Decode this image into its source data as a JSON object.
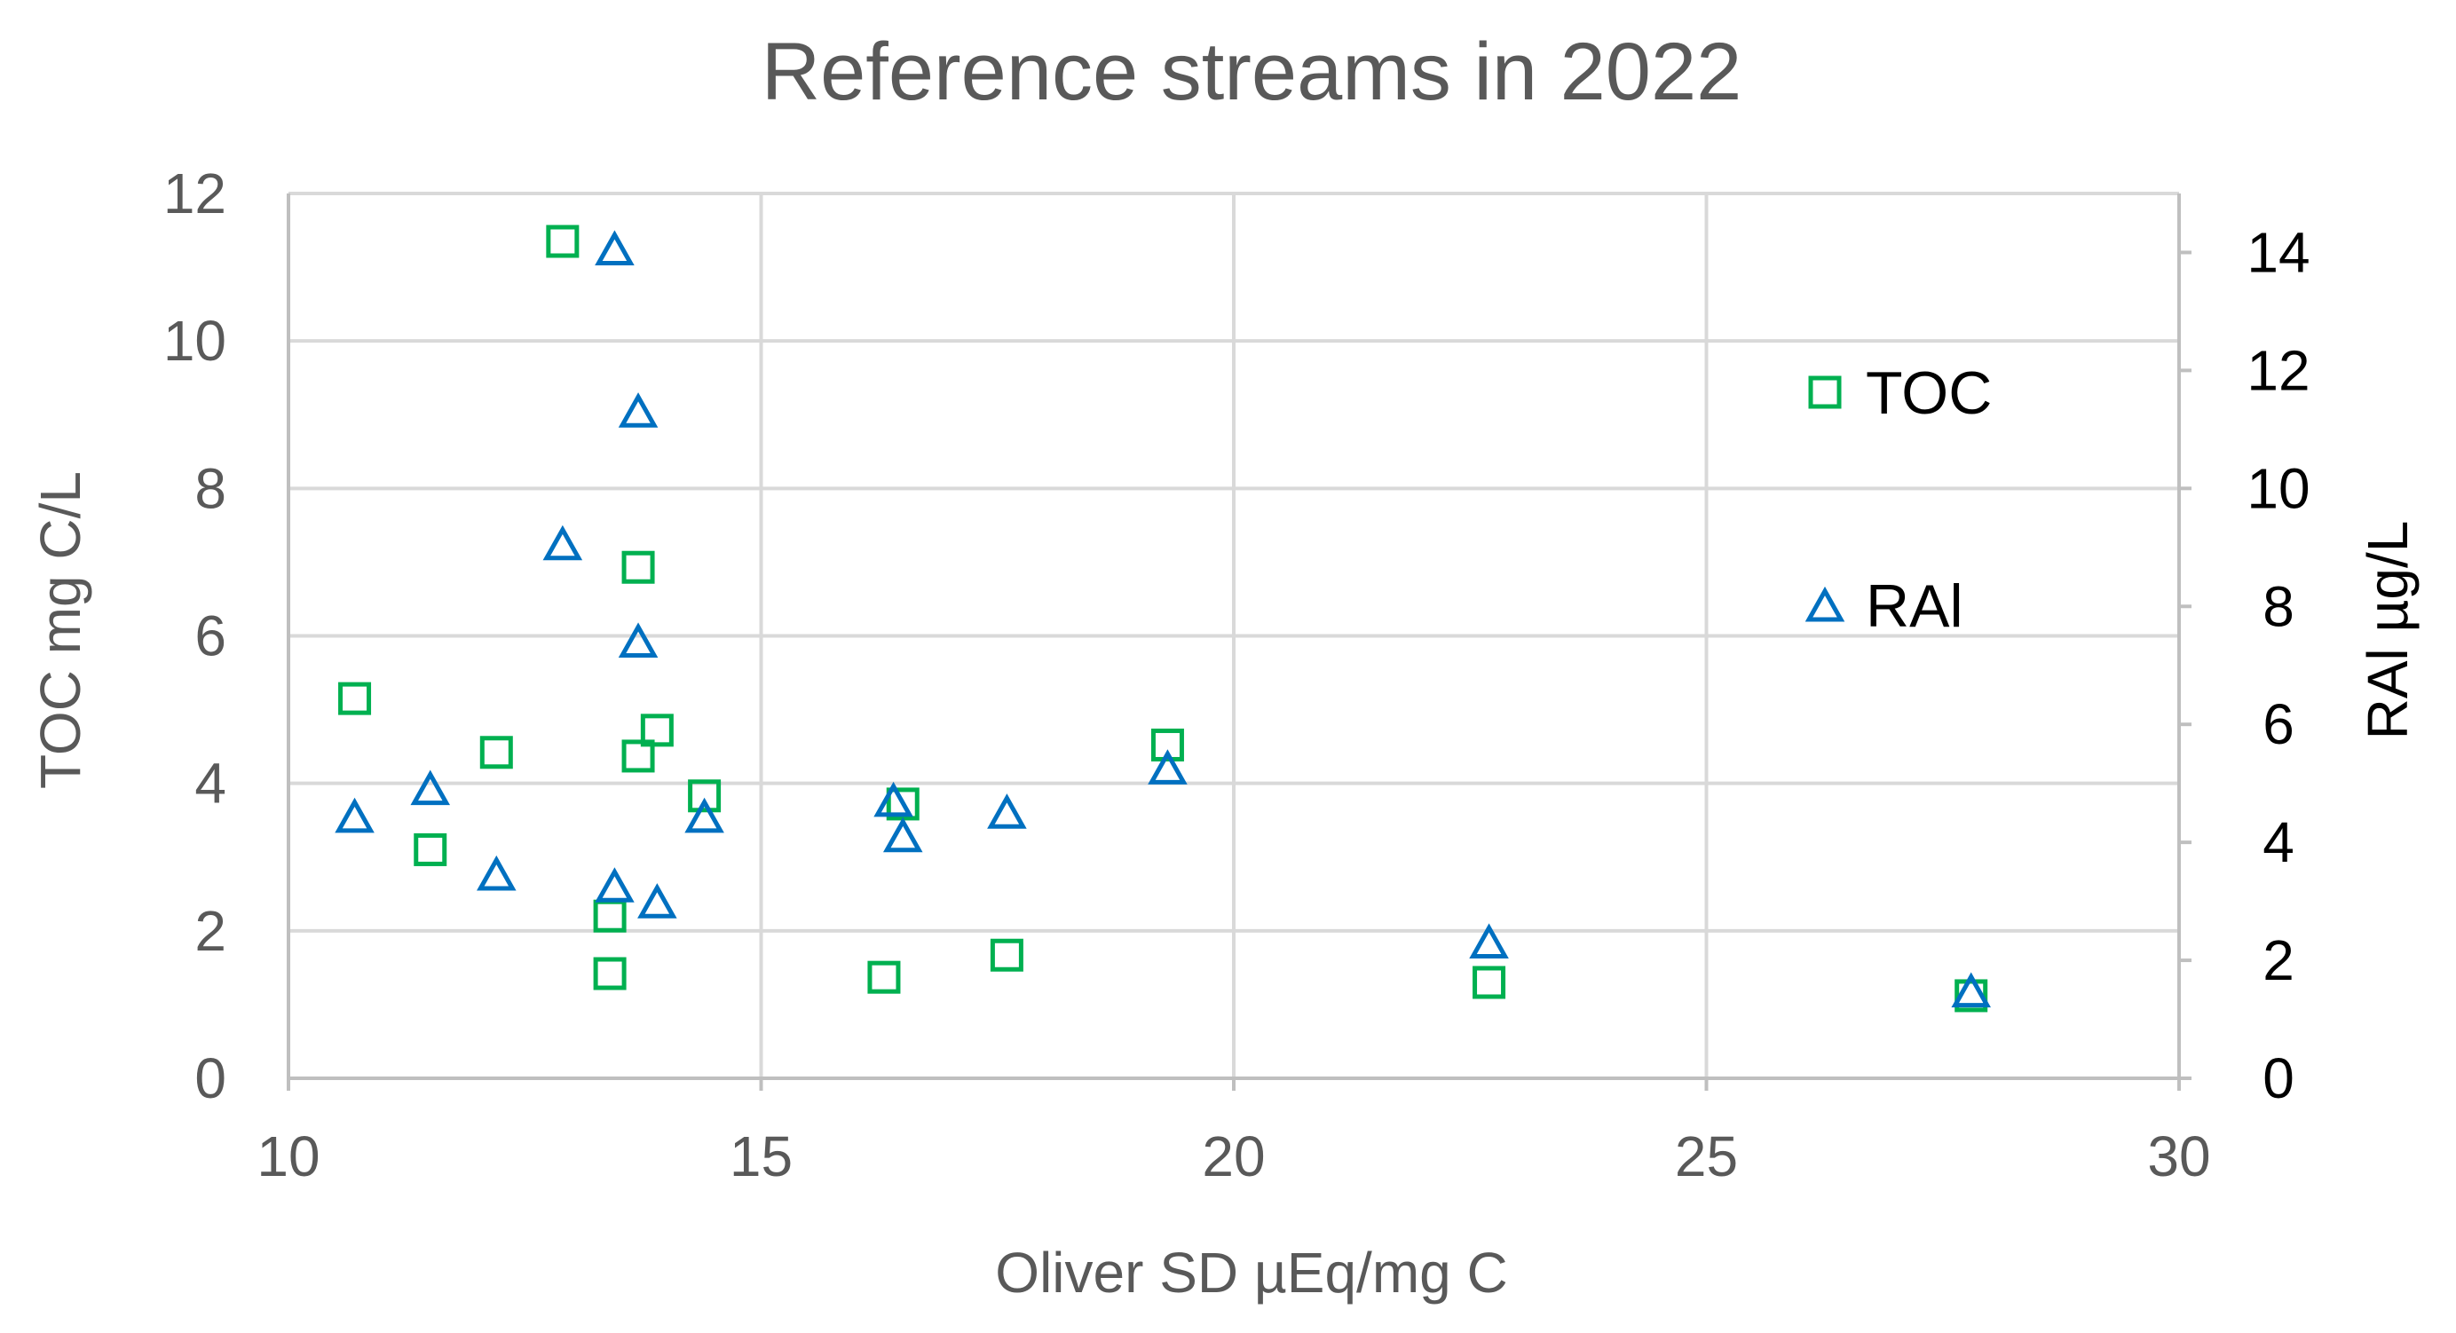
{
  "chart_data": {
    "type": "scatter",
    "title": "Reference streams in 2022",
    "xlabel": "Oliver SD µEq/mg C",
    "ylabel": "TOC mg C/L",
    "y2label": "RAl µg/L",
    "xlim": [
      10,
      30
    ],
    "ylim": [
      0,
      12
    ],
    "y2lim": [
      0,
      15
    ],
    "xticks": [
      10,
      15,
      20,
      25,
      30
    ],
    "yticks": [
      0,
      2,
      4,
      6,
      8,
      10,
      12
    ],
    "y2ticks": [
      0,
      2,
      4,
      6,
      8,
      10,
      12,
      14
    ],
    "grid": true,
    "legend_position": "right",
    "series": [
      {
        "name": "TOC",
        "axis": "left",
        "marker": "square",
        "color": "#00B050",
        "points": [
          [
            10.7,
            5.15
          ],
          [
            11.5,
            3.1
          ],
          [
            12.2,
            4.42
          ],
          [
            12.9,
            11.35
          ],
          [
            13.4,
            2.2
          ],
          [
            13.4,
            1.42
          ],
          [
            13.7,
            6.93
          ],
          [
            13.7,
            4.37
          ],
          [
            13.9,
            4.72
          ],
          [
            14.4,
            3.83
          ],
          [
            16.3,
            1.37
          ],
          [
            16.5,
            3.72
          ],
          [
            17.6,
            1.67
          ],
          [
            19.3,
            4.52
          ],
          [
            22.7,
            1.3
          ],
          [
            27.8,
            1.12
          ]
        ]
      },
      {
        "name": "RAl",
        "axis": "right",
        "marker": "triangle",
        "color": "#0070C0",
        "points": [
          [
            10.7,
            4.38
          ],
          [
            11.5,
            4.85
          ],
          [
            12.2,
            3.4
          ],
          [
            12.9,
            9.0
          ],
          [
            13.45,
            14.0
          ],
          [
            13.45,
            3.2
          ],
          [
            13.7,
            11.25
          ],
          [
            13.7,
            7.35
          ],
          [
            13.9,
            2.93
          ],
          [
            14.4,
            4.38
          ],
          [
            16.4,
            4.65
          ],
          [
            16.5,
            4.05
          ],
          [
            17.6,
            4.45
          ],
          [
            19.3,
            5.2
          ],
          [
            22.7,
            2.25
          ],
          [
            27.8,
            1.42
          ]
        ]
      }
    ]
  }
}
